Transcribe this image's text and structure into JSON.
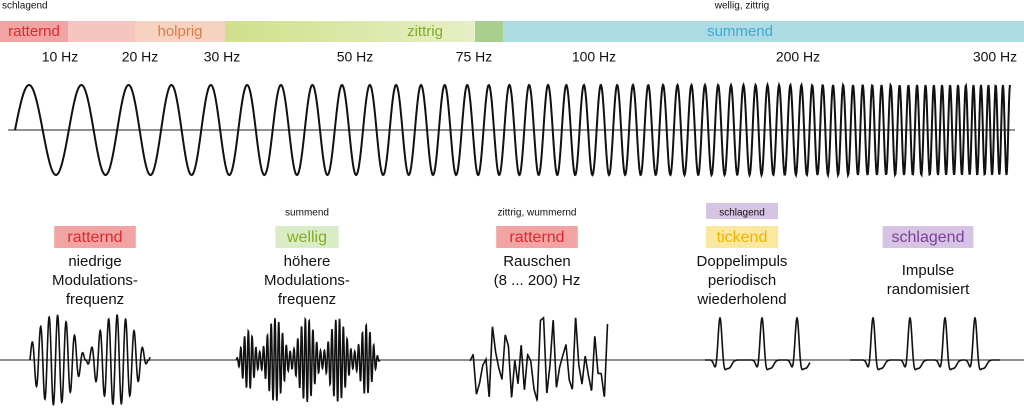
{
  "header": {
    "top_left": "schlagend",
    "top_right": "wellig, zittrig"
  },
  "bands": [
    {
      "label": "ratternd"
    },
    {
      "label": "holprig"
    },
    {
      "label": "zittrig"
    },
    {
      "label": "summend"
    }
  ],
  "frequencies": [
    "10 Hz",
    "20 Hz",
    "30 Hz",
    "50 Hz",
    "75 Hz",
    "100 Hz",
    "200 Hz",
    "300 Hz"
  ],
  "panels": [
    {
      "tag": "ratternd",
      "lines": [
        "niedrige",
        "Modulations-",
        "frequenz"
      ]
    },
    {
      "note": "summend",
      "tag": "wellig",
      "lines": [
        "höhere",
        "Modulations-",
        "frequenz"
      ]
    },
    {
      "note": "zittrig, wummernd",
      "tag": "ratternd",
      "lines": [
        "Rauschen",
        "(8 ... 200) Hz"
      ]
    },
    {
      "note": "schlagend",
      "tag": "tickend",
      "lines": [
        "Doppelimpuls",
        "periodisch",
        "wiederholend"
      ]
    },
    {
      "tag": "schlagend",
      "lines": [
        "Impulse",
        "randomisiert"
      ]
    }
  ]
}
